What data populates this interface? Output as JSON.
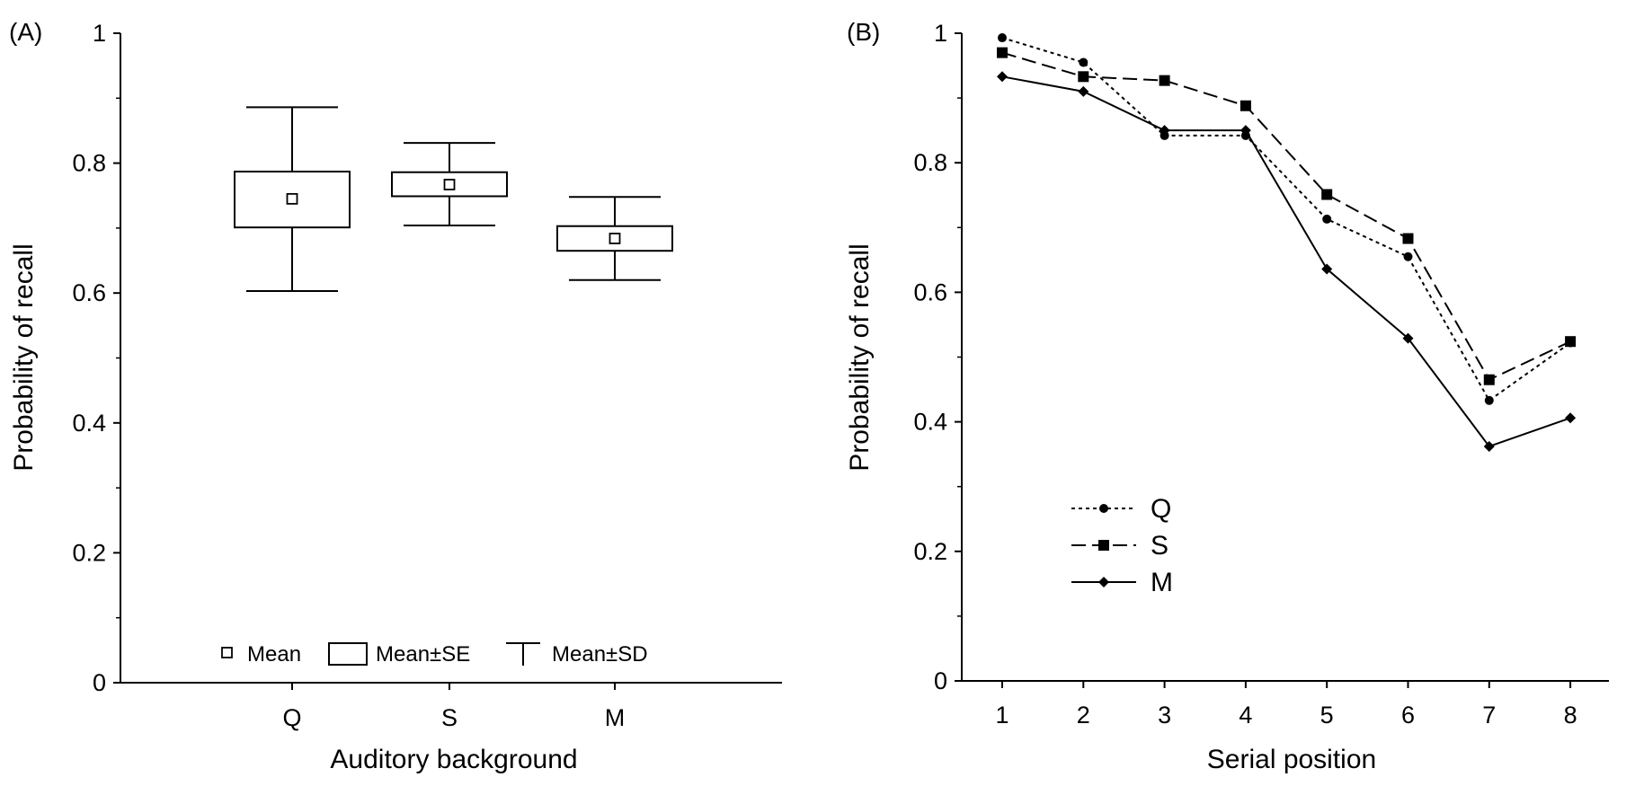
{
  "chart_data": [
    {
      "panel_label": "(A)",
      "type": "box",
      "categories": [
        "Q",
        "S",
        "M"
      ],
      "mean": [
        0.745,
        0.767,
        0.684
      ],
      "se_lower": [
        0.701,
        0.749,
        0.665
      ],
      "se_upper": [
        0.787,
        0.786,
        0.703
      ],
      "sd_lower": [
        0.603,
        0.704,
        0.62
      ],
      "sd_upper": [
        0.886,
        0.831,
        0.748
      ],
      "xlabel": "Auditory background",
      "ylabel": "Probability of recall",
      "ylim": [
        0,
        1
      ],
      "yticks": [
        "0",
        "0.2",
        "0.4",
        "0.6",
        "0.8",
        "1"
      ],
      "legend": {
        "placement": "bottom",
        "entries": [
          "Mean",
          "Mean±SE",
          "Mean±SD"
        ]
      }
    },
    {
      "panel_label": "(B)",
      "type": "line",
      "x": [
        1,
        2,
        3,
        4,
        5,
        6,
        7,
        8
      ],
      "xticks": [
        "1",
        "2",
        "3",
        "4",
        "5",
        "6",
        "7",
        "8"
      ],
      "series": [
        {
          "name": "Q",
          "style": "dotted",
          "marker": "circle",
          "values": [
            0.993,
            0.955,
            0.842,
            0.842,
            0.713,
            0.655,
            0.433,
            0.522
          ]
        },
        {
          "name": "S",
          "style": "dashed",
          "marker": "square",
          "values": [
            0.97,
            0.933,
            0.927,
            0.888,
            0.751,
            0.683,
            0.465,
            0.524
          ]
        },
        {
          "name": "M",
          "style": "solid",
          "marker": "diamond",
          "values": [
            0.933,
            0.91,
            0.85,
            0.85,
            0.636,
            0.529,
            0.362,
            0.406
          ]
        }
      ],
      "xlabel": "Serial position",
      "ylabel": "Probability of recall",
      "ylim": [
        0,
        1
      ],
      "yticks": [
        "0",
        "0.2",
        "0.4",
        "0.6",
        "0.8",
        "1"
      ],
      "legend": {
        "placement": "center-left"
      }
    }
  ]
}
